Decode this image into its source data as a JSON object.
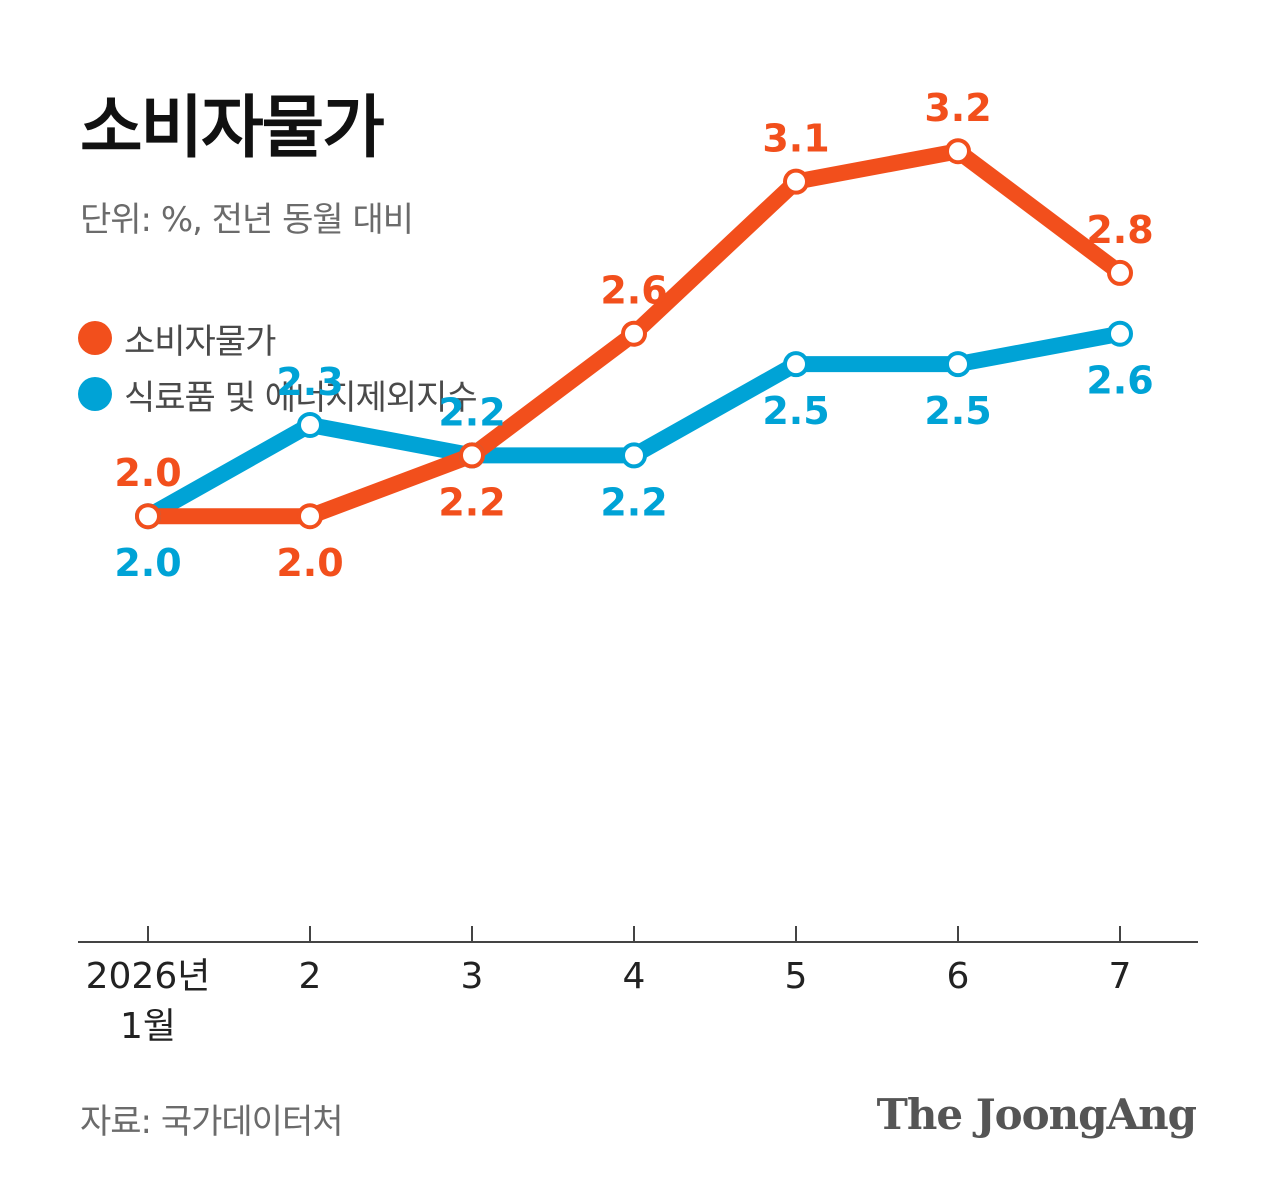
{
  "title": "소비자물가",
  "subtitle": "단위: %, 전년 동월 대비",
  "colors": {
    "cpi": "#f24f1c",
    "core": "#00a3d6",
    "axis": "#444444",
    "label_gray": "#6b6b6b"
  },
  "legend": [
    {
      "name": "소비자물가",
      "color": "#f24f1c"
    },
    {
      "name": "식료품 및 에너지제외지수",
      "color": "#00a3d6"
    }
  ],
  "chart_data": {
    "type": "line",
    "categories": [
      "2026년\n1월",
      "2",
      "3",
      "4",
      "5",
      "6",
      "7"
    ],
    "series": [
      {
        "name": "소비자물가",
        "color": "#f24f1c",
        "values": [
          2.0,
          2.0,
          2.2,
          2.6,
          3.1,
          3.2,
          2.8
        ]
      },
      {
        "name": "식료품 및 에너지제외지수",
        "color": "#00a3d6",
        "values": [
          2.0,
          2.3,
          2.2,
          2.2,
          2.5,
          2.5,
          2.6
        ]
      }
    ],
    "ylim": [
      0.6,
      3.5
    ],
    "grid": false,
    "legend_position": "top-left",
    "title": "소비자물가",
    "xlabel": "",
    "ylabel": ""
  },
  "source": "자료: 국가데이터처",
  "brand": "The JoongAng"
}
